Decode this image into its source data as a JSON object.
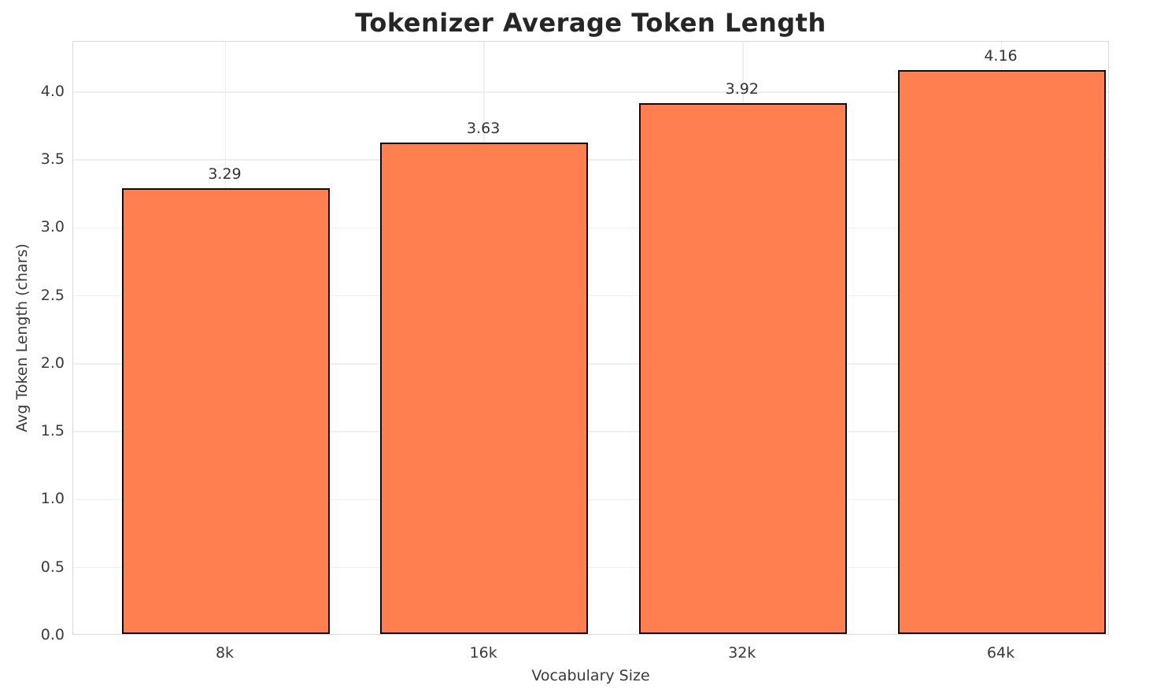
{
  "chart_data": {
    "type": "bar",
    "title": "Tokenizer Average Token Length",
    "xlabel": "Vocabulary Size",
    "ylabel": "Avg Token Length (chars)",
    "categories": [
      "8k",
      "16k",
      "32k",
      "64k"
    ],
    "values": [
      3.29,
      3.63,
      3.92,
      4.16
    ],
    "value_labels": [
      "3.29",
      "3.63",
      "3.92",
      "4.16"
    ],
    "yticks": [
      0.0,
      0.5,
      1.0,
      1.5,
      2.0,
      2.5,
      3.0,
      3.5,
      4.0
    ],
    "ytick_labels": [
      "0.0",
      "0.5",
      "1.0",
      "1.5",
      "2.0",
      "2.5",
      "3.0",
      "3.5",
      "4.0"
    ],
    "ylim": [
      0,
      4.37
    ],
    "grid": true,
    "legend": "none",
    "bar_color": "#FF7F50",
    "bar_edge_color": "#0d0d0d",
    "grid_color": "#efefef",
    "spine_color": "#d9d9d9",
    "title_color": "#262626",
    "tick_color": "#3a3a3a"
  }
}
